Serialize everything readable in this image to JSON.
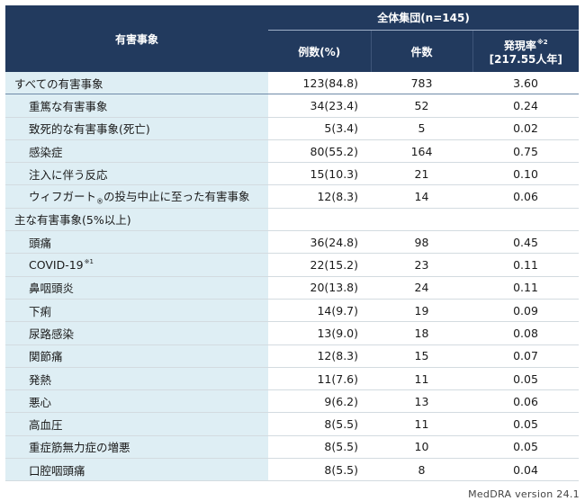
{
  "header": {
    "ae_label": "有害事象",
    "group_label": "全体集団(n=145)",
    "col_n": "例数(%)",
    "col_count": "件数",
    "col_rate": "発現率",
    "col_rate_note": "※2",
    "col_rate_unit": "[217.55人年]"
  },
  "rows": [
    {
      "label": "すべての有害事象",
      "n": "123(84.8)",
      "count": "783",
      "rate": "3.60"
    },
    {
      "label": "重篤な有害事象",
      "n": "34(23.4)",
      "count": "52",
      "rate": "0.24"
    },
    {
      "label": "致死的な有害事象(死亡)",
      "n": "5(3.4)",
      "count": "5",
      "rate": "0.02"
    },
    {
      "label": "感染症",
      "n": "80(55.2)",
      "count": "164",
      "rate": "0.75"
    },
    {
      "label": "注入に伴う反応",
      "n": "15(10.3)",
      "count": "21",
      "rate": "0.10"
    },
    {
      "label": "ウィフガート",
      "label_mark": "®",
      "label_suffix": "の投与中止に至った有害事象",
      "n": "12(8.3)",
      "count": "14",
      "rate": "0.06"
    },
    {
      "label": "主な有害事象(5%以上)",
      "n": "",
      "count": "",
      "rate": ""
    },
    {
      "label": "頭痛",
      "n": "36(24.8)",
      "count": "98",
      "rate": "0.45"
    },
    {
      "label": "COVID-19",
      "label_note": "※1",
      "n": "22(15.2)",
      "count": "23",
      "rate": "0.11"
    },
    {
      "label": "鼻咽頭炎",
      "n": "20(13.8)",
      "count": "24",
      "rate": "0.11"
    },
    {
      "label": "下痢",
      "n": "14(9.7)",
      "count": "19",
      "rate": "0.09"
    },
    {
      "label": "尿路感染",
      "n": "13(9.0)",
      "count": "18",
      "rate": "0.08"
    },
    {
      "label": "関節痛",
      "n": "12(8.3)",
      "count": "15",
      "rate": "0.07"
    },
    {
      "label": "発熱",
      "n": "11(7.6)",
      "count": "11",
      "rate": "0.05"
    },
    {
      "label": "悪心",
      "n": "9(6.2)",
      "count": "13",
      "rate": "0.06"
    },
    {
      "label": "高血圧",
      "n": "8(5.5)",
      "count": "11",
      "rate": "0.05"
    },
    {
      "label": "重症筋無力症の増悪",
      "n": "8(5.5)",
      "count": "10",
      "rate": "0.05"
    },
    {
      "label": "口腔咽頭痛",
      "n": "8(5.5)",
      "count": "8",
      "rate": "0.04"
    }
  ],
  "footer": "MedDRA version 24.1"
}
